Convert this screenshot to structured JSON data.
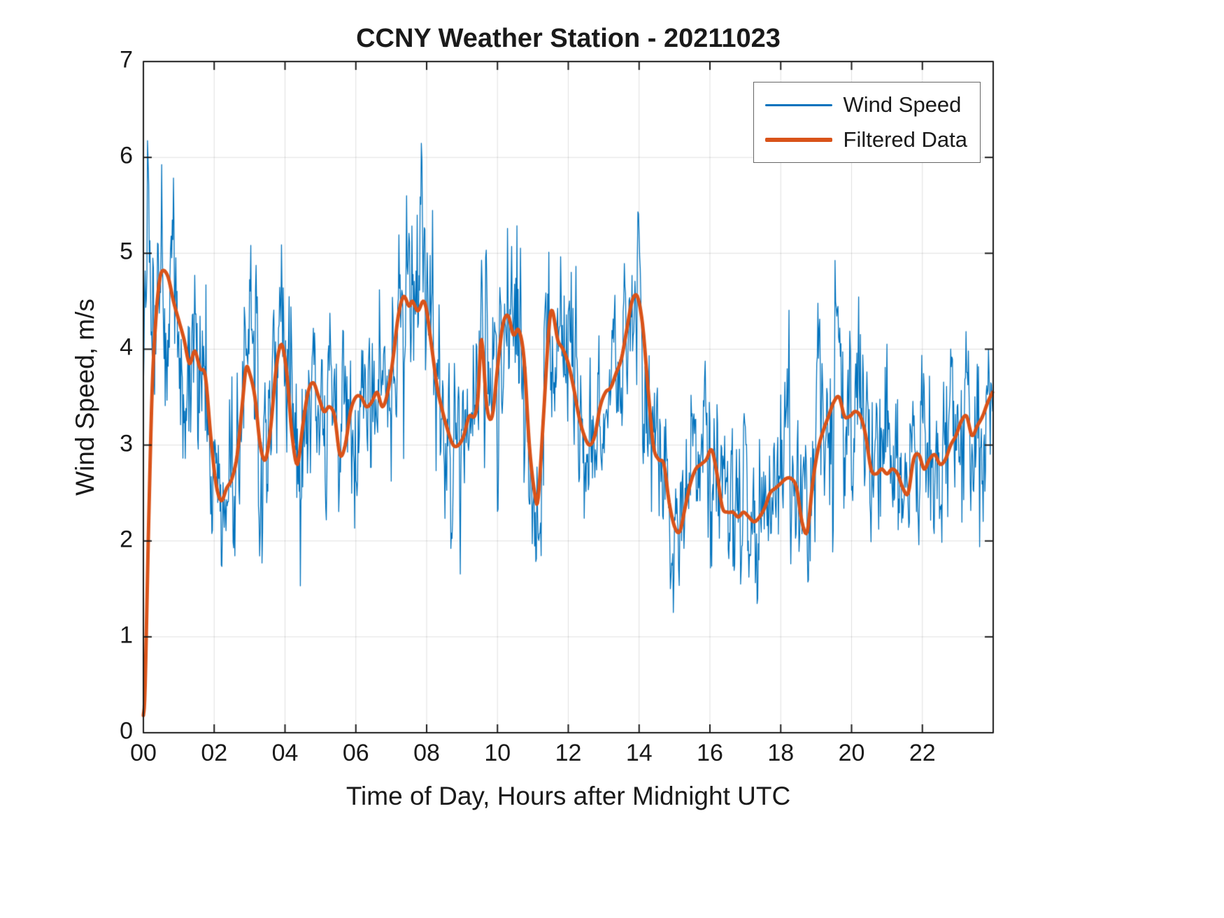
{
  "colors": {
    "blue": "#0072BD",
    "orange": "#D95319",
    "axis": "#1a1a1a",
    "grid": "rgba(38,38,38,0.15)",
    "background": "#ffffff"
  },
  "chart_data": {
    "type": "line",
    "title": "CCNY Weather Station - 20211023",
    "xlabel": "Time of Day, Hours after Midnight UTC",
    "ylabel": "Wind Speed, m/s",
    "xlim": [
      0,
      24
    ],
    "ylim": [
      0,
      7
    ],
    "xticks": [
      0,
      2,
      4,
      6,
      8,
      10,
      12,
      14,
      16,
      18,
      20,
      22
    ],
    "xtick_labels": [
      "00",
      "02",
      "04",
      "06",
      "08",
      "10",
      "12",
      "14",
      "16",
      "18",
      "20",
      "22"
    ],
    "yticks": [
      0,
      1,
      2,
      3,
      4,
      5,
      6,
      7
    ],
    "ytick_labels": [
      "0",
      "1",
      "2",
      "3",
      "4",
      "5",
      "6",
      "7"
    ],
    "grid": true,
    "legend": {
      "position": "top-right",
      "entries": [
        {
          "label": "Wind Speed",
          "color": "#0072BD",
          "line_width": 1.5
        },
        {
          "label": "Filtered Data",
          "color": "#D95319",
          "line_width": 5
        }
      ]
    },
    "series": [
      {
        "name": "Filtered Data",
        "color": "#D95319",
        "width": 5,
        "points": [
          [
            0.0,
            0.18
          ],
          [
            0.05,
            0.5
          ],
          [
            0.15,
            2.2
          ],
          [
            0.25,
            3.6
          ],
          [
            0.35,
            4.3
          ],
          [
            0.45,
            4.7
          ],
          [
            0.55,
            4.82
          ],
          [
            0.7,
            4.75
          ],
          [
            0.85,
            4.5
          ],
          [
            1.0,
            4.3
          ],
          [
            1.15,
            4.1
          ],
          [
            1.3,
            3.85
          ],
          [
            1.45,
            3.98
          ],
          [
            1.6,
            3.8
          ],
          [
            1.75,
            3.72
          ],
          [
            1.9,
            3.1
          ],
          [
            2.05,
            2.6
          ],
          [
            2.2,
            2.42
          ],
          [
            2.35,
            2.55
          ],
          [
            2.5,
            2.65
          ],
          [
            2.65,
            2.9
          ],
          [
            2.8,
            3.45
          ],
          [
            2.9,
            3.8
          ],
          [
            3.0,
            3.75
          ],
          [
            3.15,
            3.5
          ],
          [
            3.3,
            3.0
          ],
          [
            3.45,
            2.85
          ],
          [
            3.6,
            3.2
          ],
          [
            3.75,
            3.8
          ],
          [
            3.9,
            4.05
          ],
          [
            4.05,
            3.75
          ],
          [
            4.2,
            3.1
          ],
          [
            4.35,
            2.8
          ],
          [
            4.5,
            3.2
          ],
          [
            4.65,
            3.55
          ],
          [
            4.8,
            3.65
          ],
          [
            4.95,
            3.5
          ],
          [
            5.1,
            3.35
          ],
          [
            5.25,
            3.4
          ],
          [
            5.4,
            3.3
          ],
          [
            5.55,
            2.9
          ],
          [
            5.7,
            3.0
          ],
          [
            5.85,
            3.35
          ],
          [
            6.0,
            3.5
          ],
          [
            6.15,
            3.5
          ],
          [
            6.3,
            3.4
          ],
          [
            6.45,
            3.45
          ],
          [
            6.6,
            3.55
          ],
          [
            6.75,
            3.4
          ],
          [
            6.9,
            3.55
          ],
          [
            7.05,
            3.9
          ],
          [
            7.2,
            4.35
          ],
          [
            7.35,
            4.55
          ],
          [
            7.5,
            4.45
          ],
          [
            7.6,
            4.5
          ],
          [
            7.75,
            4.4
          ],
          [
            7.9,
            4.5
          ],
          [
            8.0,
            4.4
          ],
          [
            8.15,
            4.0
          ],
          [
            8.3,
            3.6
          ],
          [
            8.45,
            3.35
          ],
          [
            8.6,
            3.15
          ],
          [
            8.75,
            3.0
          ],
          [
            8.9,
            3.0
          ],
          [
            9.05,
            3.1
          ],
          [
            9.2,
            3.3
          ],
          [
            9.35,
            3.3
          ],
          [
            9.45,
            3.5
          ],
          [
            9.55,
            4.1
          ],
          [
            9.7,
            3.4
          ],
          [
            9.85,
            3.3
          ],
          [
            10.0,
            3.8
          ],
          [
            10.15,
            4.25
          ],
          [
            10.3,
            4.35
          ],
          [
            10.45,
            4.15
          ],
          [
            10.6,
            4.2
          ],
          [
            10.75,
            3.9
          ],
          [
            10.9,
            3.0
          ],
          [
            11.05,
            2.5
          ],
          [
            11.15,
            2.45
          ],
          [
            11.3,
            3.3
          ],
          [
            11.45,
            4.2
          ],
          [
            11.55,
            4.4
          ],
          [
            11.7,
            4.1
          ],
          [
            11.85,
            4.0
          ],
          [
            12.0,
            3.85
          ],
          [
            12.15,
            3.6
          ],
          [
            12.3,
            3.3
          ],
          [
            12.45,
            3.1
          ],
          [
            12.6,
            3.0
          ],
          [
            12.75,
            3.1
          ],
          [
            12.9,
            3.4
          ],
          [
            13.05,
            3.55
          ],
          [
            13.2,
            3.6
          ],
          [
            13.35,
            3.75
          ],
          [
            13.5,
            3.9
          ],
          [
            13.65,
            4.2
          ],
          [
            13.8,
            4.5
          ],
          [
            13.95,
            4.55
          ],
          [
            14.1,
            4.25
          ],
          [
            14.25,
            3.6
          ],
          [
            14.4,
            3.0
          ],
          [
            14.55,
            2.85
          ],
          [
            14.7,
            2.8
          ],
          [
            14.85,
            2.4
          ],
          [
            15.0,
            2.15
          ],
          [
            15.15,
            2.1
          ],
          [
            15.3,
            2.35
          ],
          [
            15.45,
            2.6
          ],
          [
            15.6,
            2.75
          ],
          [
            15.75,
            2.8
          ],
          [
            15.9,
            2.85
          ],
          [
            16.05,
            2.95
          ],
          [
            16.2,
            2.7
          ],
          [
            16.35,
            2.35
          ],
          [
            16.5,
            2.3
          ],
          [
            16.65,
            2.3
          ],
          [
            16.8,
            2.25
          ],
          [
            16.95,
            2.3
          ],
          [
            17.1,
            2.25
          ],
          [
            17.25,
            2.2
          ],
          [
            17.4,
            2.25
          ],
          [
            17.55,
            2.35
          ],
          [
            17.7,
            2.5
          ],
          [
            17.85,
            2.55
          ],
          [
            18.0,
            2.6
          ],
          [
            18.15,
            2.65
          ],
          [
            18.3,
            2.65
          ],
          [
            18.45,
            2.55
          ],
          [
            18.6,
            2.2
          ],
          [
            18.75,
            2.1
          ],
          [
            18.9,
            2.6
          ],
          [
            19.05,
            2.95
          ],
          [
            19.2,
            3.15
          ],
          [
            19.35,
            3.3
          ],
          [
            19.5,
            3.45
          ],
          [
            19.65,
            3.5
          ],
          [
            19.8,
            3.3
          ],
          [
            19.95,
            3.3
          ],
          [
            20.1,
            3.35
          ],
          [
            20.25,
            3.3
          ],
          [
            20.4,
            3.1
          ],
          [
            20.55,
            2.75
          ],
          [
            20.7,
            2.7
          ],
          [
            20.85,
            2.75
          ],
          [
            21.0,
            2.7
          ],
          [
            21.15,
            2.75
          ],
          [
            21.3,
            2.7
          ],
          [
            21.45,
            2.55
          ],
          [
            21.6,
            2.5
          ],
          [
            21.75,
            2.85
          ],
          [
            21.9,
            2.9
          ],
          [
            22.05,
            2.75
          ],
          [
            22.2,
            2.85
          ],
          [
            22.35,
            2.9
          ],
          [
            22.5,
            2.8
          ],
          [
            22.65,
            2.85
          ],
          [
            22.8,
            3.0
          ],
          [
            22.95,
            3.1
          ],
          [
            23.1,
            3.25
          ],
          [
            23.25,
            3.3
          ],
          [
            23.4,
            3.1
          ],
          [
            23.55,
            3.2
          ],
          [
            23.7,
            3.3
          ],
          [
            23.85,
            3.45
          ],
          [
            23.98,
            3.55
          ]
        ]
      },
      {
        "name": "Wind Speed",
        "color": "#0072BD",
        "width": 1.3,
        "synthesis": {
          "from": "Filtered Data",
          "dt_hours": 0.0166667,
          "seed": 2021,
          "ar": 0.55,
          "sigma": 0.75,
          "amp_base": 0.25,
          "amp_scale": 0.1,
          "jitter": 0.35,
          "warmup_until": 0.5,
          "warmup_base": 4.8,
          "clip_min": 0.15,
          "clip_max": 6.55
        }
      }
    ]
  }
}
